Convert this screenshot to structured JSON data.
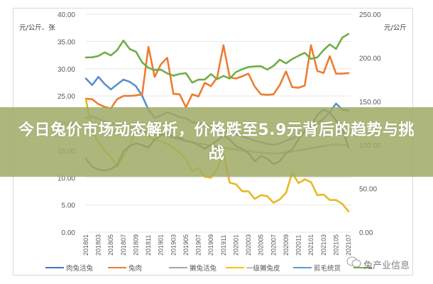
{
  "banner": {
    "title": "今日兔价市场动态解析，价格跌至5.9元背后的趋势与挑战",
    "color": "#a0aa64"
  },
  "watermark": {
    "text": "兔产业信息",
    "icon": "wechat-bubble-icon"
  },
  "chart_data": {
    "type": "line",
    "title": "",
    "left_axis": {
      "unit_label": "元/公斤、张",
      "ticks": [
        "40.00",
        "35.00",
        "30.00",
        "25.00",
        "20.00",
        "15.00",
        "10.00",
        "5.00",
        "0.00"
      ],
      "range": [
        0,
        40
      ]
    },
    "right_axis": {
      "unit_label": "元/公斤",
      "ticks": [
        "250.00",
        "200.00",
        "150.00",
        "100.00",
        "50.00",
        "0.00"
      ],
      "range": [
        0,
        250
      ]
    },
    "x_tick_labels": [
      "201801",
      "201803",
      "201805",
      "201807",
      "201809",
      "201811",
      "201901",
      "201903",
      "201905",
      "201907",
      "201909",
      "201911",
      "202001",
      "202003",
      "202005",
      "202007",
      "202009",
      "202011",
      "202101",
      "202103",
      "202105",
      "202107"
    ],
    "x": [
      "201801",
      "201802",
      "201803",
      "201804",
      "201805",
      "201806",
      "201807",
      "201808",
      "201809",
      "201810",
      "201811",
      "201812",
      "201901",
      "201902",
      "201903",
      "201904",
      "201905",
      "201906",
      "201907",
      "201908",
      "201909",
      "201910",
      "201911",
      "201912",
      "202001",
      "202002",
      "202003",
      "202004",
      "202005",
      "202006",
      "202007",
      "202008",
      "202009",
      "202010",
      "202011",
      "202012",
      "202101",
      "202102",
      "202103",
      "202104",
      "202105",
      "202106",
      "202107"
    ],
    "legend_position": "bottom",
    "grid": true,
    "series": [
      {
        "name": "肉兔活兔",
        "axis": "left",
        "color": "#5b8fc9",
        "values": [
          28.2,
          27.0,
          28.5,
          27.2,
          26.2,
          27.1,
          28.0,
          27.6,
          26.8,
          25.0,
          22.5,
          21.0,
          21.4,
          22.0,
          21.6,
          21.1,
          20.9,
          20.2,
          20.0,
          19.8,
          19.2,
          19.0,
          18.7,
          18.3,
          18.0,
          17.6,
          17.2,
          16.8,
          16.5,
          16.2,
          16.0,
          16.3,
          16.8,
          17.2,
          17.8,
          18.4,
          19.2,
          20.0,
          20.8,
          22.0,
          23.6,
          22.5,
          22.3
        ]
      },
      {
        "name": "兔肉",
        "axis": "left",
        "color": "#ed7d31",
        "values": [
          24.5,
          24.4,
          23.5,
          23.0,
          22.7,
          24.4,
          25.0,
          25.0,
          25.1,
          25.3,
          34.0,
          28.5,
          30.8,
          32.0,
          25.4,
          25.3,
          22.9,
          25.3,
          24.9,
          27.4,
          26.8,
          28.4,
          34.3,
          28.4,
          28.2,
          28.6,
          29.1,
          26.7,
          25.3,
          25.2,
          25.3,
          27.0,
          29.5,
          26.6,
          26.5,
          26.9,
          34.3,
          29.6,
          29.2,
          32.3,
          29.1,
          29.1,
          29.2
        ]
      },
      {
        "name": "獭兔活兔",
        "axis": "left",
        "color": "#a5a5a5",
        "values": [
          21.0,
          21.2,
          20.8,
          20.3,
          20.0,
          19.8,
          19.6,
          19.4,
          19.0,
          18.6,
          18.2,
          18.0,
          17.8,
          17.6,
          17.3,
          17.0,
          16.7,
          16.5,
          16.3,
          16.1,
          15.9,
          15.7,
          15.5,
          15.3,
          15.2,
          15.0,
          14.9,
          14.7,
          14.6,
          14.5,
          14.4,
          14.5,
          14.6,
          14.8,
          15.0,
          15.2,
          15.4,
          15.6,
          15.8,
          16.0,
          16.1,
          16.0,
          15.9
        ]
      },
      {
        "name": "一级獭兔皮",
        "axis": "left",
        "color": "#e8b923",
        "values": [
          24.4,
          18.5,
          16.5,
          15.0,
          13.8,
          12.0,
          14.0,
          15.8,
          19.0,
          18.2,
          17.5,
          17.0,
          16.6,
          16.2,
          15.5,
          14.6,
          13.4,
          11.2,
          11.8,
          10.2,
          10.0,
          11.6,
          14.5,
          9.1,
          8.8,
          7.5,
          7.5,
          6.1,
          6.8,
          6.6,
          5.4,
          6.0,
          7.2,
          10.9,
          9.0,
          9.7,
          9.2,
          6.8,
          6.9,
          5.9,
          5.9,
          5.2,
          3.8
        ]
      },
      {
        "name": "剪毛统货",
        "axis": "left",
        "color": "#4a7a9c",
        "values": [
          13.5,
          12.0,
          11.5,
          11.3,
          11.6,
          12.3,
          14.8,
          15.8,
          16.3,
          16.0,
          15.5,
          17.0,
          17.8,
          18.2,
          17.5,
          17.3,
          16.8,
          16.5,
          16.0,
          15.3,
          16.0,
          16.8,
          17.7,
          17.0,
          15.8,
          15.3,
          14.5,
          13.0,
          14.0,
          13.5,
          12.5,
          13.0,
          14.5,
          15.2,
          17.0,
          18.5,
          19.5,
          21.5,
          22.5,
          22.0,
          20.5,
          19.0,
          15.5
        ]
      },
      {
        "name": "兔产业信息(绿)",
        "axis": "right",
        "color": "#70ad47",
        "values": [
          200.4,
          200.6,
          202.0,
          206.3,
          202.8,
          208.7,
          219.8,
          210.1,
          207.0,
          194.7,
          188.5,
          186.0,
          186.3,
          182.2,
          179.5,
          181.5,
          182.3,
          171.6,
          174.9,
          175.0,
          181.3,
          175.5,
          179.2,
          176.2,
          183.6,
          186.9,
          189.5,
          190.1,
          190.3,
          186.5,
          190.6,
          197.8,
          193.6,
          198.6,
          202.3,
          205.7,
          198.8,
          200.5,
          208.7,
          215.4,
          210.2,
          223.1,
          227.4
        ]
      }
    ]
  },
  "legend": [
    {
      "label": "肉兔活兔",
      "color": "#4472c4"
    },
    {
      "label": "兔肉",
      "color": "#ed7d31"
    },
    {
      "label": "獭兔活兔",
      "color": "#a5a5a5"
    },
    {
      "label": "一级獭兔皮",
      "color": "#ffc000"
    },
    {
      "label": "剪毛统货",
      "color": "#5b9bd5"
    },
    {
      "label": "",
      "color": "#70ad47"
    }
  ]
}
